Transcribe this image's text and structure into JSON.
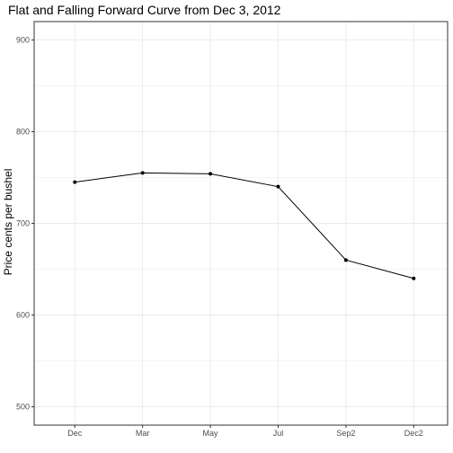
{
  "chart_data": {
    "type": "line",
    "title": "Flat and Falling Forward Curve from Dec 3, 2012",
    "xlabel": "",
    "ylabel": "Price cents per bushel",
    "categories": [
      "Dec",
      "Mar",
      "May",
      "Jul",
      "Sep2",
      "Dec2"
    ],
    "values": [
      745,
      755,
      754,
      740,
      660,
      640
    ],
    "ylim": [
      480,
      920
    ],
    "yticks": [
      500,
      600,
      700,
      800,
      900
    ],
    "grid": true,
    "legend": "none",
    "line_color": "#000000",
    "point_color": "#000000",
    "grid_color": "#ebebeb"
  }
}
